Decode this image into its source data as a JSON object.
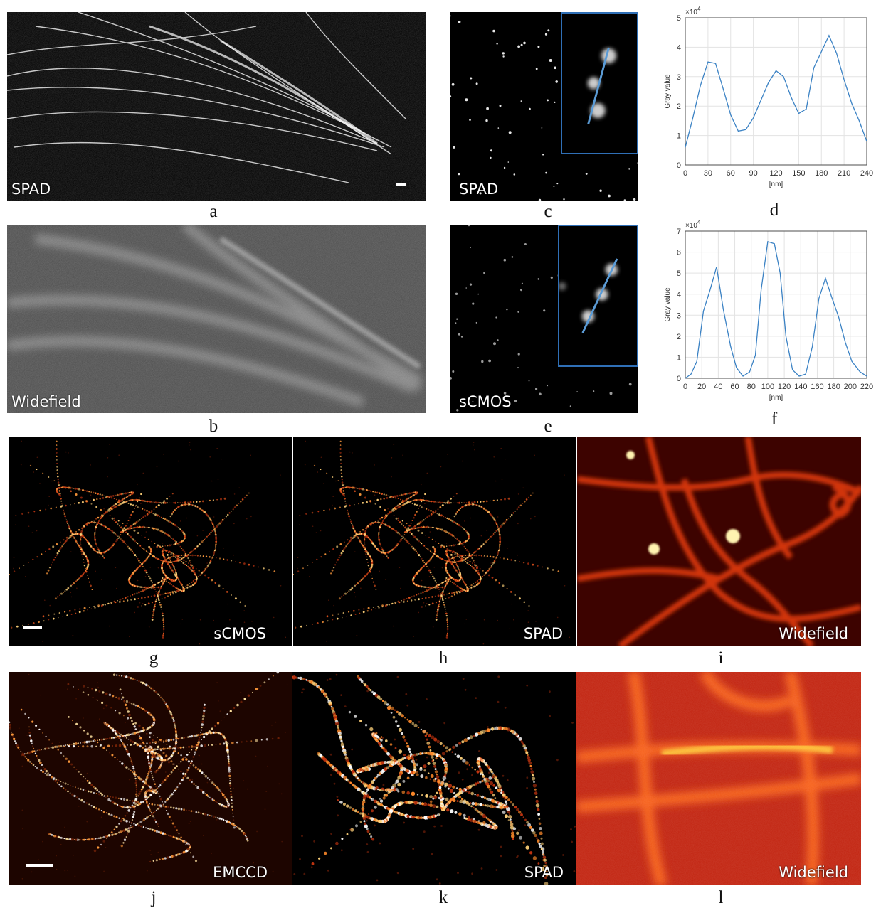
{
  "colors": {
    "line_series": "#3b82c4",
    "inset_border": "#2f6fb6",
    "hot_bright": "#ffd27a",
    "hot_mid": "#e2401a",
    "gray_fiber": "#d8d8d8"
  },
  "panels": {
    "a": {
      "letter": "a",
      "label": "SPAD"
    },
    "b": {
      "letter": "b",
      "label": "Widefield"
    },
    "c": {
      "letter": "c",
      "label": "SPAD"
    },
    "e": {
      "letter": "e",
      "label": "sCMOS"
    },
    "g": {
      "letter": "g",
      "label": "sCMOS"
    },
    "h": {
      "letter": "h",
      "label": "SPAD"
    },
    "i": {
      "letter": "i",
      "label": "Widefield"
    },
    "j": {
      "letter": "j",
      "label": "EMCCD"
    },
    "k": {
      "letter": "k",
      "label": "SPAD"
    },
    "l": {
      "letter": "l",
      "label": "Widefield"
    }
  },
  "chart_data": [
    {
      "panel": "d",
      "letter": "d",
      "type": "line",
      "xlabel": "[nm]",
      "ylabel": "Gray value",
      "y_multiplier": "×10",
      "y_multiplier_exp": "4",
      "xlim": [
        0,
        240
      ],
      "ylim": [
        0,
        5
      ],
      "xticks": [
        0,
        30,
        60,
        90,
        120,
        150,
        180,
        210,
        240
      ],
      "yticks": [
        0,
        1,
        2,
        3,
        4,
        5
      ],
      "grid": true,
      "x": [
        0,
        10,
        20,
        30,
        40,
        50,
        60,
        70,
        80,
        90,
        100,
        110,
        120,
        130,
        140,
        150,
        160,
        170,
        180,
        190,
        200,
        210,
        220,
        230,
        240
      ],
      "y": [
        0.6,
        1.6,
        2.7,
        3.5,
        3.45,
        2.6,
        1.7,
        1.15,
        1.2,
        1.6,
        2.2,
        2.8,
        3.2,
        3.0,
        2.3,
        1.75,
        1.9,
        3.3,
        3.85,
        4.4,
        3.8,
        2.9,
        2.1,
        1.5,
        0.8
      ]
    },
    {
      "panel": "f",
      "letter": "f",
      "type": "line",
      "xlabel": "[nm]",
      "ylabel": "Gray value",
      "y_multiplier": "×10",
      "y_multiplier_exp": "4",
      "xlim": [
        0,
        220
      ],
      "ylim": [
        0,
        7
      ],
      "xticks": [
        0,
        20,
        40,
        60,
        80,
        100,
        120,
        140,
        160,
        180,
        200,
        220
      ],
      "yticks": [
        0,
        1,
        2,
        3,
        4,
        5,
        6,
        7
      ],
      "grid": true,
      "x": [
        0,
        7,
        14,
        22,
        30,
        38,
        46,
        55,
        62,
        70,
        78,
        85,
        92,
        100,
        108,
        115,
        122,
        130,
        138,
        146,
        154,
        162,
        170,
        178,
        186,
        194,
        202,
        212,
        220
      ],
      "y": [
        0.0,
        0.2,
        0.8,
        3.2,
        4.2,
        5.3,
        3.3,
        1.5,
        0.5,
        0.1,
        0.3,
        1.1,
        4.2,
        6.5,
        6.4,
        5.0,
        2.0,
        0.4,
        0.1,
        0.2,
        1.5,
        3.8,
        4.75,
        3.8,
        2.9,
        1.7,
        0.8,
        0.3,
        0.1
      ]
    }
  ]
}
